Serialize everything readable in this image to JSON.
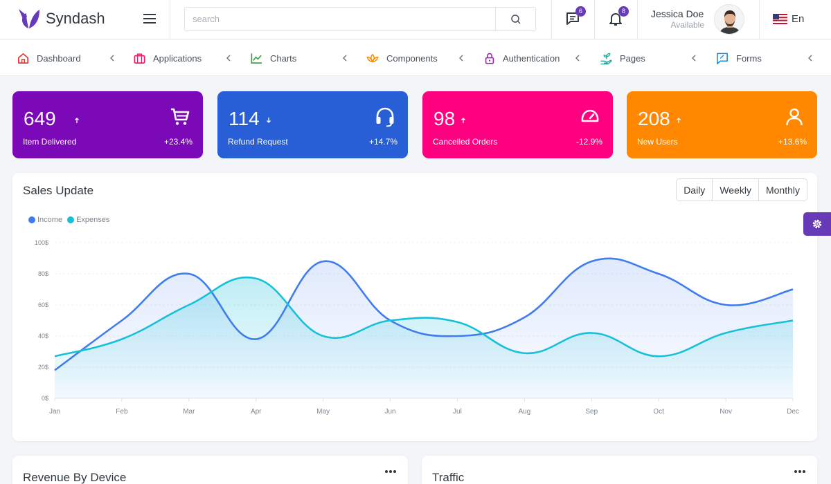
{
  "brand": {
    "name": "Syndash",
    "color": "#673ab7"
  },
  "search": {
    "placeholder": "search",
    "value": ""
  },
  "header": {
    "messages_badge": "6",
    "notifications_badge": "8",
    "user_name": "Jessica Doe",
    "user_status": "Available",
    "language": "En"
  },
  "nav": [
    {
      "label": "Dashboard",
      "icon": "home-icon",
      "color": "#e53935"
    },
    {
      "label": "Applications",
      "icon": "briefcase-icon",
      "color": "#e91e63"
    },
    {
      "label": "Charts",
      "icon": "chart-line-icon",
      "color": "#43a047"
    },
    {
      "label": "Components",
      "icon": "lotus-icon",
      "color": "#fb8c00"
    },
    {
      "label": "Authentication",
      "icon": "lock-icon",
      "color": "#9c27b0"
    },
    {
      "label": "Pages",
      "icon": "hand-seedling-icon",
      "color": "#26a69a"
    },
    {
      "label": "Forms",
      "icon": "message-square-icon",
      "color": "#1e88e5"
    }
  ],
  "stats": [
    {
      "value": "649",
      "label": "Item Delivered",
      "change": "+23.4%",
      "trend": "up",
      "icon": "cart-icon",
      "color": "#7b09b7"
    },
    {
      "value": "114",
      "label": "Refund Request",
      "change": "+14.7%",
      "trend": "down",
      "icon": "headphones-icon",
      "color": "#285fd6"
    },
    {
      "value": "98",
      "label": "Cancelled Orders",
      "change": "-12.9%",
      "trend": "up",
      "icon": "speedometer-icon",
      "color": "#ff0080"
    },
    {
      "value": "208",
      "label": "New Users",
      "change": "+13.6%",
      "trend": "up",
      "icon": "user-icon",
      "color": "#ff8800"
    }
  ],
  "sales": {
    "title": "Sales Update",
    "periods": [
      "Daily",
      "Weekly",
      "Monthly"
    ]
  },
  "chart_data": {
    "type": "area",
    "categories": [
      "Jan",
      "Feb",
      "Mar",
      "Apr",
      "May",
      "Jun",
      "Jul",
      "Aug",
      "Sep",
      "Oct",
      "Nov",
      "Dec"
    ],
    "series": [
      {
        "name": "Income",
        "color": "#3f7cf0",
        "values": [
          18,
          50,
          80,
          38,
          88,
          50,
          40,
          52,
          88,
          80,
          60,
          70
        ]
      },
      {
        "name": "Expenses",
        "color": "#17c0d9",
        "values": [
          27,
          38,
          60,
          77,
          40,
          50,
          49,
          29,
          42,
          27,
          42,
          50
        ]
      }
    ],
    "y_ticks": [
      "0$",
      "20$",
      "40$",
      "60$",
      "80$",
      "100$"
    ],
    "ylim": [
      0,
      100
    ],
    "grid": true,
    "legend": "top-left"
  },
  "bottom_cards": [
    {
      "title": "Revenue By Device"
    },
    {
      "title": "Traffic"
    }
  ]
}
